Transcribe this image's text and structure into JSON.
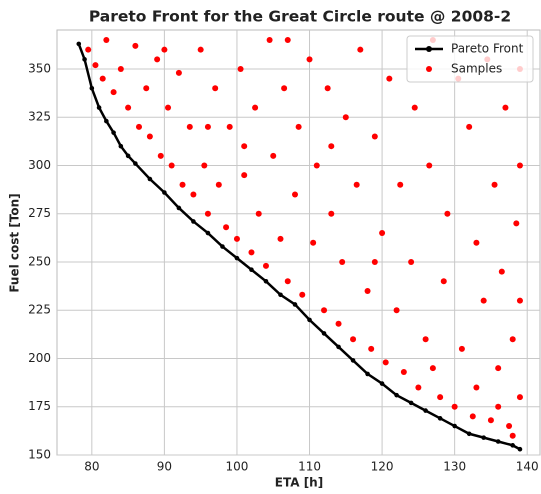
{
  "chart_data": {
    "type": "scatter",
    "title": "Pareto Front for the Great Circle route @ 2008-2",
    "x_label": "ETA [h]",
    "y_label": "Fuel cost [Ton]",
    "xlim": [
      75.2,
      141.9
    ],
    "ylim": [
      150,
      370.2
    ],
    "xticks": [
      80,
      90,
      100,
      110,
      120,
      130,
      140
    ],
    "yticks": [
      150,
      175,
      200,
      225,
      250,
      275,
      300,
      325,
      350
    ],
    "grid": true,
    "legend": "upper right",
    "series": [
      {
        "name": "Pareto Front",
        "color": "#000000",
        "mode": "line",
        "x": [
          78.2,
          79,
          80,
          81,
          82,
          83,
          84,
          85,
          86,
          88,
          90,
          92,
          94,
          96,
          98,
          100,
          102,
          104,
          106,
          108,
          110,
          112,
          114,
          116,
          118,
          120,
          122,
          124,
          126,
          128,
          130,
          132,
          134,
          136,
          138,
          139
        ],
        "values": [
          363,
          355,
          340,
          330,
          323,
          317,
          310,
          305,
          301,
          293,
          286,
          278,
          271,
          265,
          258,
          252,
          246,
          240,
          233,
          228,
          220,
          213,
          206,
          199,
          192,
          187,
          181,
          177,
          173,
          169,
          165,
          161,
          159,
          157,
          155,
          153
        ]
      },
      {
        "name": "Samples",
        "color": "#ff0000",
        "mode": "points",
        "x": [
          79.5,
          80.5,
          81.5,
          82,
          83,
          84,
          85,
          86,
          86.5,
          87.5,
          88,
          89,
          89.5,
          90.5,
          91,
          92,
          92.5,
          93.5,
          94,
          95,
          95.5,
          96,
          97,
          97.5,
          98.5,
          99,
          100,
          100.5,
          101,
          102,
          102.5,
          103,
          104,
          104.5,
          105,
          106,
          106.5,
          107,
          108,
          108.5,
          109,
          110,
          110.5,
          111,
          112,
          112.5,
          113,
          114,
          114.5,
          115,
          116,
          116.5,
          117,
          118,
          118.5,
          119,
          120,
          120.5,
          121,
          122,
          122.5,
          123,
          124,
          124.5,
          125,
          126,
          126.5,
          127,
          128,
          128.5,
          129,
          130,
          130.5,
          131,
          132,
          132.5,
          133,
          134,
          134.5,
          135,
          135.5,
          136,
          136.5,
          137,
          137.5,
          138,
          138.5,
          139,
          139,
          139,
          139,
          138,
          136,
          133,
          127,
          119,
          113,
          107,
          101,
          96,
          90
        ],
        "values": [
          360,
          352,
          345,
          365,
          338,
          350,
          330,
          362,
          320,
          340,
          315,
          355,
          305,
          330,
          300,
          348,
          290,
          320,
          285,
          360,
          300,
          275,
          340,
          290,
          268,
          320,
          262,
          350,
          295,
          255,
          330,
          275,
          248,
          365,
          305,
          262,
          340,
          240,
          285,
          320,
          233,
          355,
          260,
          300,
          225,
          340,
          275,
          218,
          250,
          325,
          210,
          290,
          360,
          235,
          205,
          315,
          265,
          198,
          345,
          225,
          290,
          193,
          250,
          330,
          185,
          210,
          300,
          365,
          180,
          240,
          275,
          175,
          345,
          205,
          320,
          170,
          260,
          230,
          355,
          168,
          290,
          195,
          245,
          330,
          165,
          210,
          270,
          300,
          180,
          230,
          350,
          160,
          175,
          185,
          195,
          250,
          310,
          365,
          310,
          320,
          360
        ]
      }
    ]
  }
}
